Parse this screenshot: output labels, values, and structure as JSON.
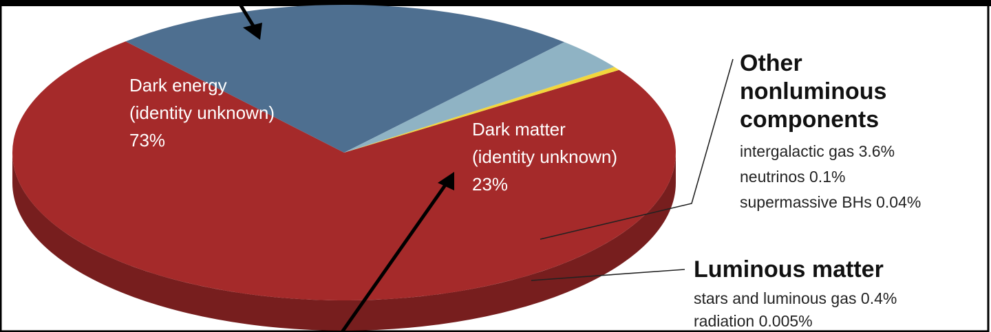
{
  "chart_data": {
    "type": "pie",
    "title": "",
    "slices": [
      {
        "label": "Dark energy",
        "sublabel": "(identity unknown)",
        "value": 73,
        "value_text": "73%",
        "color": "#a52a2a"
      },
      {
        "label": "Dark matter",
        "sublabel": "(identity unknown)",
        "value": 23,
        "value_text": "23%",
        "color": "#4e6f90"
      },
      {
        "label": "Other nonluminous components",
        "value": 3.6,
        "color": "#8fb3c4"
      },
      {
        "label": "Luminous matter",
        "value": 0.4,
        "color": "#f2d63c"
      }
    ],
    "annotations": {
      "other_nonluminous": {
        "title_lines": [
          "Other",
          "nonluminous",
          "components"
        ],
        "items": [
          "intergalactic gas 3.6%",
          "neutrinos 0.1%",
          "supermassive BHs 0.04%"
        ]
      },
      "luminous": {
        "title": "Luminous matter",
        "items": [
          "stars and luminous gas 0.4%",
          "radiation 0.005%"
        ]
      }
    }
  }
}
